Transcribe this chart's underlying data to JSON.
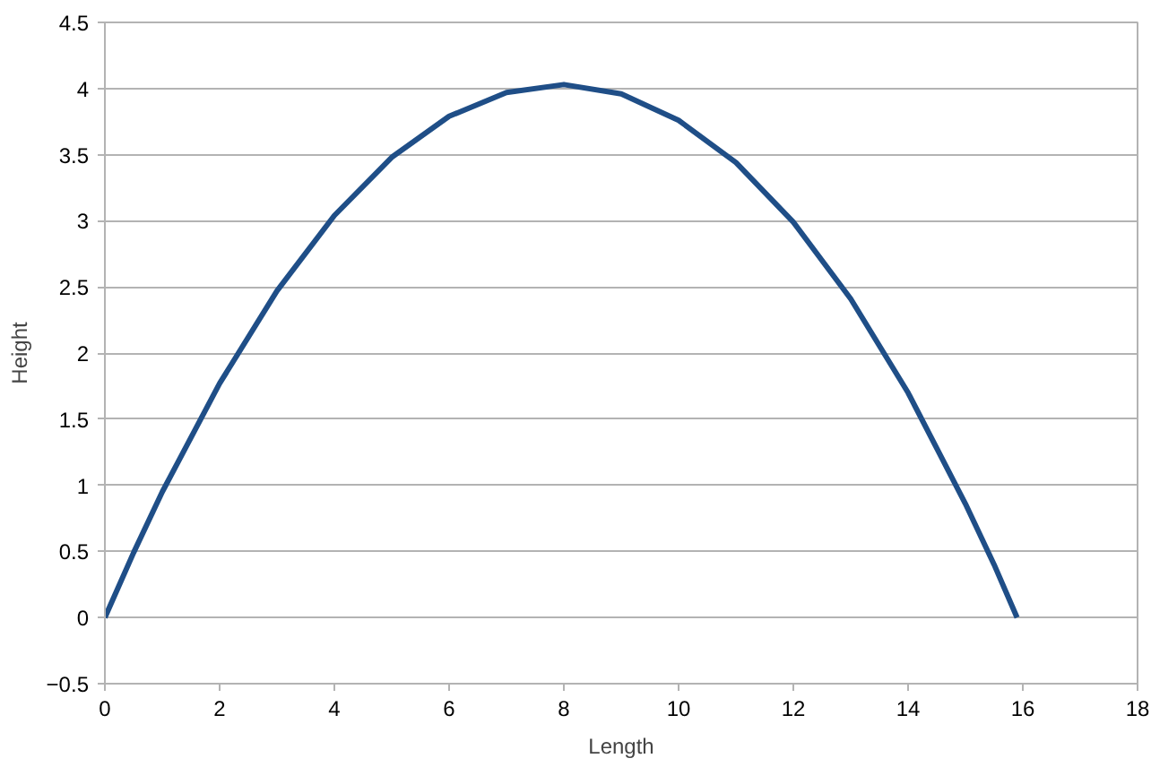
{
  "chart_data": {
    "type": "line",
    "xlabel": "Length",
    "ylabel": "Height",
    "xlim": [
      0,
      18
    ],
    "xticks": [
      0,
      2,
      4,
      6,
      8,
      10,
      12,
      14,
      16,
      18
    ],
    "ylim": [
      -0.5,
      4.5
    ],
    "yticks": [
      -0.5,
      0,
      0.5,
      1,
      1.5,
      2,
      2.5,
      3,
      3.5,
      4,
      4.5
    ],
    "grid": "y",
    "marker": "none",
    "line_style": "solid",
    "series": [
      {
        "color": "#1f4e87",
        "x": [
          0,
          0.5,
          1,
          2,
          3,
          4,
          5,
          6,
          7,
          8,
          9,
          10,
          11,
          12,
          13,
          14,
          15,
          15.5,
          15.9
        ],
        "values": [
          0,
          0.49,
          0.95,
          1.77,
          2.47,
          3.04,
          3.48,
          3.79,
          3.97,
          4.03,
          3.96,
          3.76,
          3.44,
          2.99,
          2.41,
          1.7,
          0.86,
          0.4,
          0
        ]
      }
    ]
  }
}
